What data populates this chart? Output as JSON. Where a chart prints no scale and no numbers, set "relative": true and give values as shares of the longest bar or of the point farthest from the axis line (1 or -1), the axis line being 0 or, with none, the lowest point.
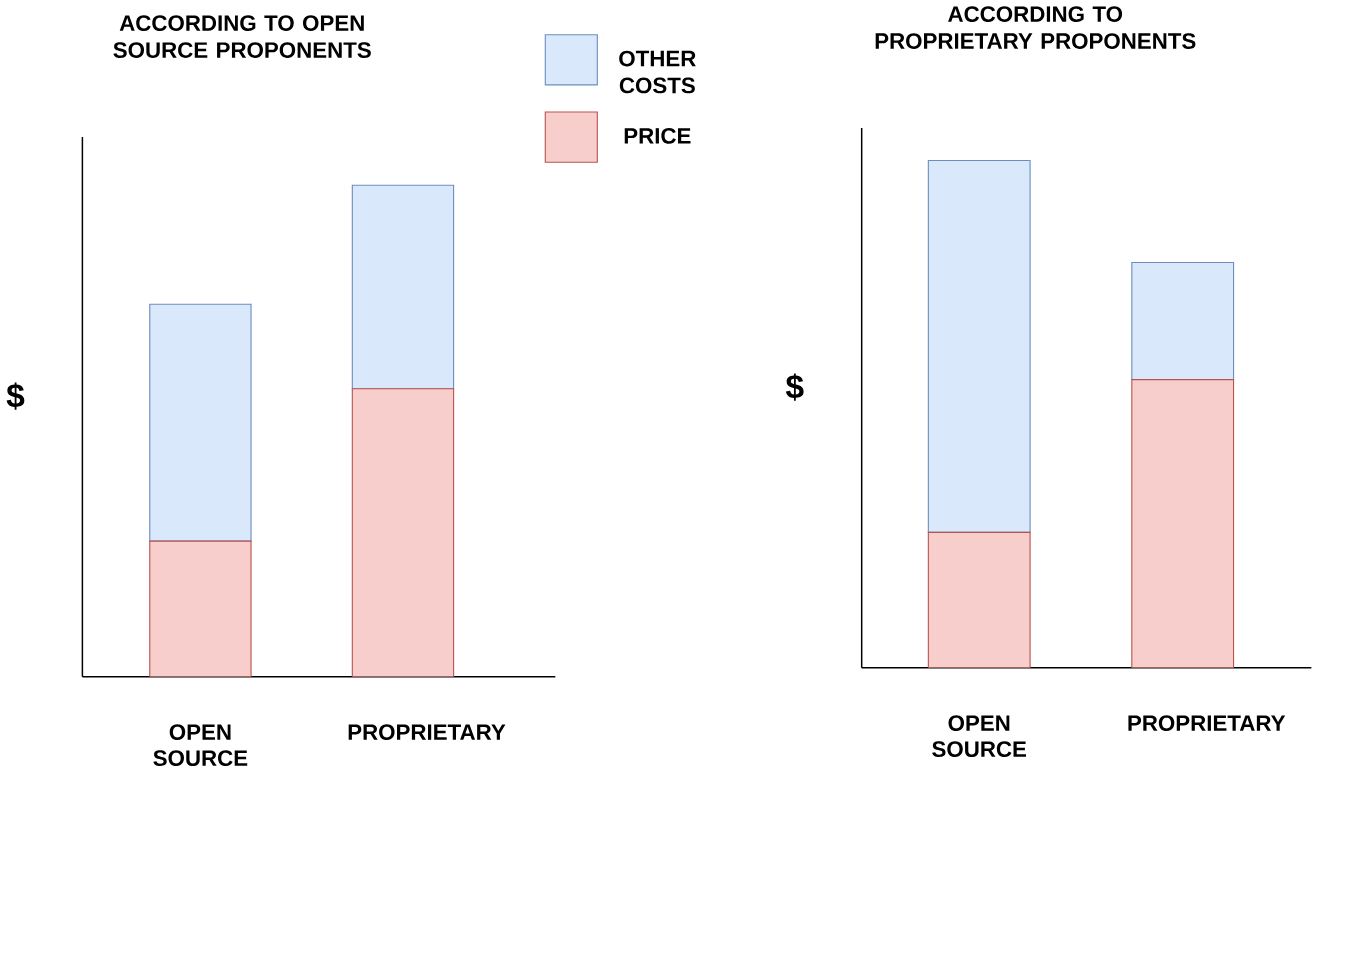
{
  "chart_data": [
    {
      "type": "bar",
      "stacked": true,
      "relative": true,
      "title": "ACCORDING TO OPEN SOURCE PROPONENTS",
      "ylabel": "$",
      "categories": [
        "OPEN SOURCE",
        "PROPRIETARY"
      ],
      "legend": "top right",
      "series": [
        {
          "name": "PRICE",
          "color": "#f8cecc",
          "values": [
            0.276,
            0.586
          ]
        },
        {
          "name": "OTHER COSTS",
          "color": "#dae8fc",
          "values": [
            0.482,
            0.414
          ]
        }
      ]
    },
    {
      "type": "bar",
      "stacked": true,
      "relative": true,
      "title": "ACCORDING TO PROPRIETARY PROPONENTS",
      "ylabel": "$",
      "categories": [
        "OPEN SOURCE",
        "PROPRIETARY"
      ],
      "series": [
        {
          "color": "#f8cecc",
          "values": [
            0.267,
            0.568
          ]
        },
        {
          "color": "#dae8fc",
          "values": [
            0.733,
            0.231
          ]
        }
      ]
    }
  ]
}
